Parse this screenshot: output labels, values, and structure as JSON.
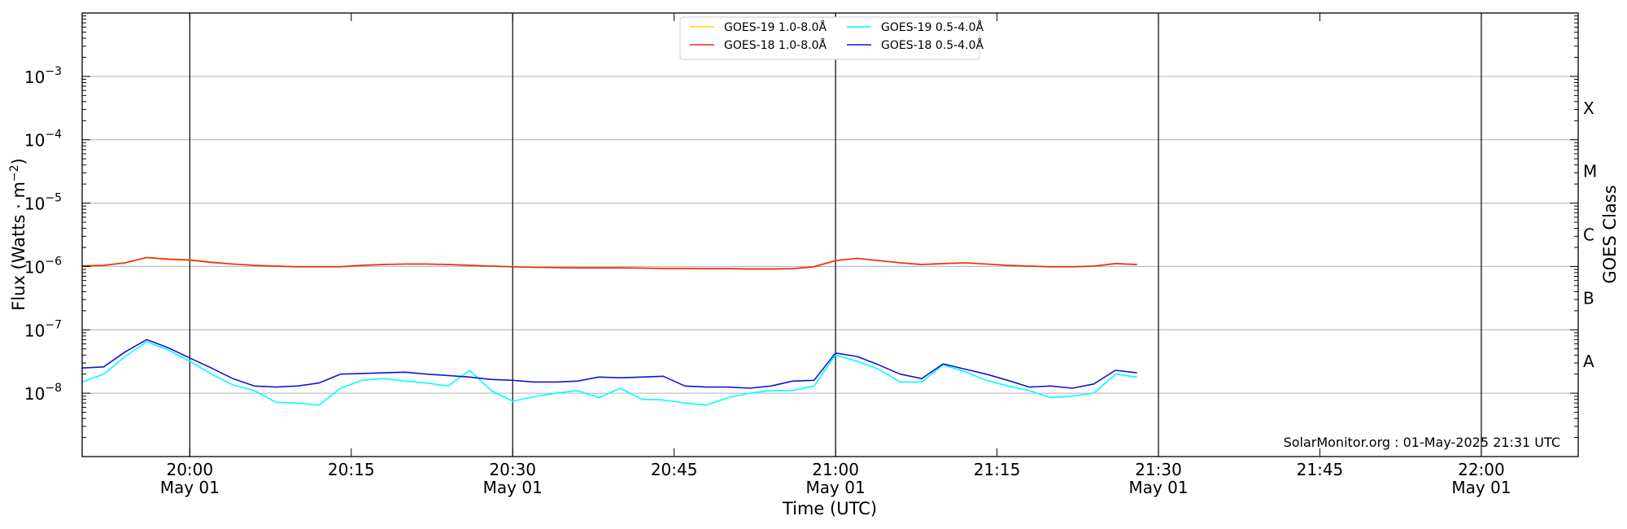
{
  "chart_data": {
    "type": "line",
    "xlabel": "Time (UTC)",
    "ylabel": "Flux (Watts · m",
    "ylabel_exponent": "−2",
    "ylabel_close": ")",
    "right_axis_label": "GOES Class",
    "y_scale": "log",
    "ylim": [
      1e-09,
      0.01
    ],
    "xlim": [
      "19:50",
      "22:09"
    ],
    "y_ticks": [
      {
        "value": 1e-08,
        "base": "10",
        "exp": "−8"
      },
      {
        "value": 1e-07,
        "base": "10",
        "exp": "−7"
      },
      {
        "value": 1e-06,
        "base": "10",
        "exp": "−6"
      },
      {
        "value": 1e-05,
        "base": "10",
        "exp": "−5"
      },
      {
        "value": 0.0001,
        "base": "10",
        "exp": "−4"
      },
      {
        "value": 0.001,
        "base": "10",
        "exp": "−3"
      }
    ],
    "x_ticks": [
      {
        "time": "20:00",
        "label": "20:00",
        "sublabel": "May 01",
        "major": true
      },
      {
        "time": "20:15",
        "label": "20:15",
        "sublabel": "",
        "major": false
      },
      {
        "time": "20:30",
        "label": "20:30",
        "sublabel": "May 01",
        "major": true
      },
      {
        "time": "20:45",
        "label": "20:45",
        "sublabel": "",
        "major": false
      },
      {
        "time": "21:00",
        "label": "21:00",
        "sublabel": "May 01",
        "major": true
      },
      {
        "time": "21:15",
        "label": "21:15",
        "sublabel": "",
        "major": false
      },
      {
        "time": "21:30",
        "label": "21:30",
        "sublabel": "May 01",
        "major": true
      },
      {
        "time": "21:45",
        "label": "21:45",
        "sublabel": "",
        "major": false
      },
      {
        "time": "22:00",
        "label": "22:00",
        "sublabel": "May 01",
        "major": true
      }
    ],
    "goes_classes": [
      {
        "label": "A",
        "flux": 1e-08
      },
      {
        "label": "B",
        "flux": 1e-07
      },
      {
        "label": "C",
        "flux": 1e-06
      },
      {
        "label": "M",
        "flux": 1e-05
      },
      {
        "label": "X",
        "flux": 0.0001
      }
    ],
    "grid": true,
    "legend_position": "top-center",
    "credit": "SolarMonitor.org : 01-May-2025 21:31 UTC",
    "series": [
      {
        "name": "GOES-19 1.0-8.0Å",
        "color": "#ffd500",
        "x": [
          "19:50",
          "19:52",
          "19:54",
          "19:56",
          "19:58",
          "20:00",
          "20:02",
          "20:04",
          "20:06",
          "20:08",
          "20:10",
          "20:12",
          "20:14",
          "20:16",
          "20:18",
          "20:20",
          "20:22",
          "20:24",
          "20:26",
          "20:28",
          "20:30",
          "20:32",
          "20:34",
          "20:36",
          "20:38",
          "20:40",
          "20:42",
          "20:44",
          "20:46",
          "20:48",
          "20:50",
          "20:52",
          "20:54",
          "20:56",
          "20:58",
          "21:00",
          "21:02",
          "21:04",
          "21:06",
          "21:08",
          "21:10",
          "21:12",
          "21:14",
          "21:16",
          "21:18",
          "21:20",
          "21:22",
          "21:24",
          "21:26",
          "21:28"
        ],
        "values": [
          1.03e-06,
          1.05e-06,
          1.15e-06,
          1.4e-06,
          1.32e-06,
          1.28e-06,
          1.18e-06,
          1.1e-06,
          1.05e-06,
          1.02e-06,
          1e-06,
          1e-06,
          1e-06,
          1.05e-06,
          1.08e-06,
          1.1e-06,
          1.1e-06,
          1.08e-06,
          1.05e-06,
          1.02e-06,
          1e-06,
          9.8e-07,
          9.7e-07,
          9.6e-07,
          9.6e-07,
          9.6e-07,
          9.5e-07,
          9.4e-07,
          9.4e-07,
          9.3e-07,
          9.3e-07,
          9.2e-07,
          9.2e-07,
          9.3e-07,
          1e-06,
          1.25e-06,
          1.35e-06,
          1.25e-06,
          1.15e-06,
          1.08e-06,
          1.12e-06,
          1.15e-06,
          1.1e-06,
          1.05e-06,
          1.02e-06,
          1e-06,
          1e-06,
          1.02e-06,
          1.12e-06,
          1.08e-06
        ]
      },
      {
        "name": "GOES-18 1.0-8.0Å",
        "color": "#e8281e",
        "x": [
          "19:50",
          "19:52",
          "19:54",
          "19:56",
          "19:58",
          "20:00",
          "20:02",
          "20:04",
          "20:06",
          "20:08",
          "20:10",
          "20:12",
          "20:14",
          "20:16",
          "20:18",
          "20:20",
          "20:22",
          "20:24",
          "20:26",
          "20:28",
          "20:30",
          "20:32",
          "20:34",
          "20:36",
          "20:38",
          "20:40",
          "20:42",
          "20:44",
          "20:46",
          "20:48",
          "20:50",
          "20:52",
          "20:54",
          "20:56",
          "20:58",
          "21:00",
          "21:02",
          "21:04",
          "21:06",
          "21:08",
          "21:10",
          "21:12",
          "21:14",
          "21:16",
          "21:18",
          "21:20",
          "21:22",
          "21:24",
          "21:26",
          "21:28"
        ],
        "values": [
          1.02e-06,
          1.04e-06,
          1.14e-06,
          1.38e-06,
          1.3e-06,
          1.26e-06,
          1.16e-06,
          1.09e-06,
          1.04e-06,
          1.01e-06,
          9.9e-07,
          9.9e-07,
          9.9e-07,
          1.04e-06,
          1.07e-06,
          1.09e-06,
          1.09e-06,
          1.07e-06,
          1.04e-06,
          1.01e-06,
          9.9e-07,
          9.7e-07,
          9.6e-07,
          9.5e-07,
          9.5e-07,
          9.5e-07,
          9.4e-07,
          9.3e-07,
          9.3e-07,
          9.2e-07,
          9.2e-07,
          9.1e-07,
          9.1e-07,
          9.2e-07,
          9.9e-07,
          1.24e-06,
          1.34e-06,
          1.24e-06,
          1.14e-06,
          1.07e-06,
          1.11e-06,
          1.14e-06,
          1.09e-06,
          1.04e-06,
          1.01e-06,
          9.9e-07,
          9.9e-07,
          1.01e-06,
          1.11e-06,
          1.07e-06
        ]
      },
      {
        "name": "GOES-19 0.5-4.0Å",
        "color": "#00ffff",
        "x": [
          "19:50",
          "19:52",
          "19:54",
          "19:56",
          "19:58",
          "20:00",
          "20:02",
          "20:04",
          "20:06",
          "20:08",
          "20:10",
          "20:12",
          "20:14",
          "20:16",
          "20:18",
          "20:20",
          "20:22",
          "20:24",
          "20:26",
          "20:28",
          "20:30",
          "20:32",
          "20:34",
          "20:36",
          "20:38",
          "20:40",
          "20:42",
          "20:44",
          "20:46",
          "20:48",
          "20:50",
          "20:52",
          "20:54",
          "20:56",
          "20:58",
          "21:00",
          "21:02",
          "21:04",
          "21:06",
          "21:08",
          "21:10",
          "21:12",
          "21:14",
          "21:16",
          "21:18",
          "21:20",
          "21:22",
          "21:24",
          "21:26",
          "21:28"
        ],
        "values": [
          1.5e-08,
          2e-08,
          3.8e-08,
          6.5e-08,
          4.8e-08,
          3.2e-08,
          2e-08,
          1.35e-08,
          1.1e-08,
          7.2e-09,
          7e-09,
          6.5e-09,
          1.2e-08,
          1.6e-08,
          1.7e-08,
          1.55e-08,
          1.45e-08,
          1.3e-08,
          2.3e-08,
          1.1e-08,
          7.5e-09,
          8.8e-09,
          1e-08,
          1.1e-08,
          8.5e-09,
          1.2e-08,
          8e-09,
          7.8e-09,
          7e-09,
          6.5e-09,
          8.5e-09,
          1e-08,
          1.1e-08,
          1.1e-08,
          1.3e-08,
          4e-08,
          3.2e-08,
          2.4e-08,
          1.5e-08,
          1.5e-08,
          2.8e-08,
          2.2e-08,
          1.6e-08,
          1.3e-08,
          1.1e-08,
          8.5e-09,
          9e-09,
          1e-08,
          2e-08,
          1.8e-08
        ]
      },
      {
        "name": "GOES-18 0.5-4.0Å",
        "color": "#1414d2",
        "x": [
          "19:50",
          "19:52",
          "19:54",
          "19:56",
          "19:58",
          "20:00",
          "20:02",
          "20:04",
          "20:06",
          "20:08",
          "20:10",
          "20:12",
          "20:14",
          "20:16",
          "20:18",
          "20:20",
          "20:22",
          "20:24",
          "20:26",
          "20:28",
          "20:30",
          "20:32",
          "20:34",
          "20:36",
          "20:38",
          "20:40",
          "20:42",
          "20:44",
          "20:46",
          "20:48",
          "20:50",
          "20:52",
          "20:54",
          "20:56",
          "20:58",
          "21:00",
          "21:02",
          "21:04",
          "21:06",
          "21:08",
          "21:10",
          "21:12",
          "21:14",
          "21:16",
          "21:18",
          "21:20",
          "21:22",
          "21:24",
          "21:26",
          "21:28"
        ],
        "values": [
          2.5e-08,
          2.6e-08,
          4.5e-08,
          7e-08,
          5.2e-08,
          3.6e-08,
          2.5e-08,
          1.7e-08,
          1.3e-08,
          1.25e-08,
          1.3e-08,
          1.45e-08,
          2e-08,
          2.05e-08,
          2.1e-08,
          2.15e-08,
          2e-08,
          1.9e-08,
          1.8e-08,
          1.65e-08,
          1.6e-08,
          1.5e-08,
          1.5e-08,
          1.55e-08,
          1.8e-08,
          1.75e-08,
          1.8e-08,
          1.85e-08,
          1.3e-08,
          1.25e-08,
          1.25e-08,
          1.2e-08,
          1.3e-08,
          1.55e-08,
          1.6e-08,
          4.3e-08,
          3.8e-08,
          2.8e-08,
          2e-08,
          1.7e-08,
          2.9e-08,
          2.4e-08,
          2e-08,
          1.6e-08,
          1.25e-08,
          1.3e-08,
          1.2e-08,
          1.4e-08,
          2.3e-08,
          2.1e-08
        ]
      }
    ]
  }
}
